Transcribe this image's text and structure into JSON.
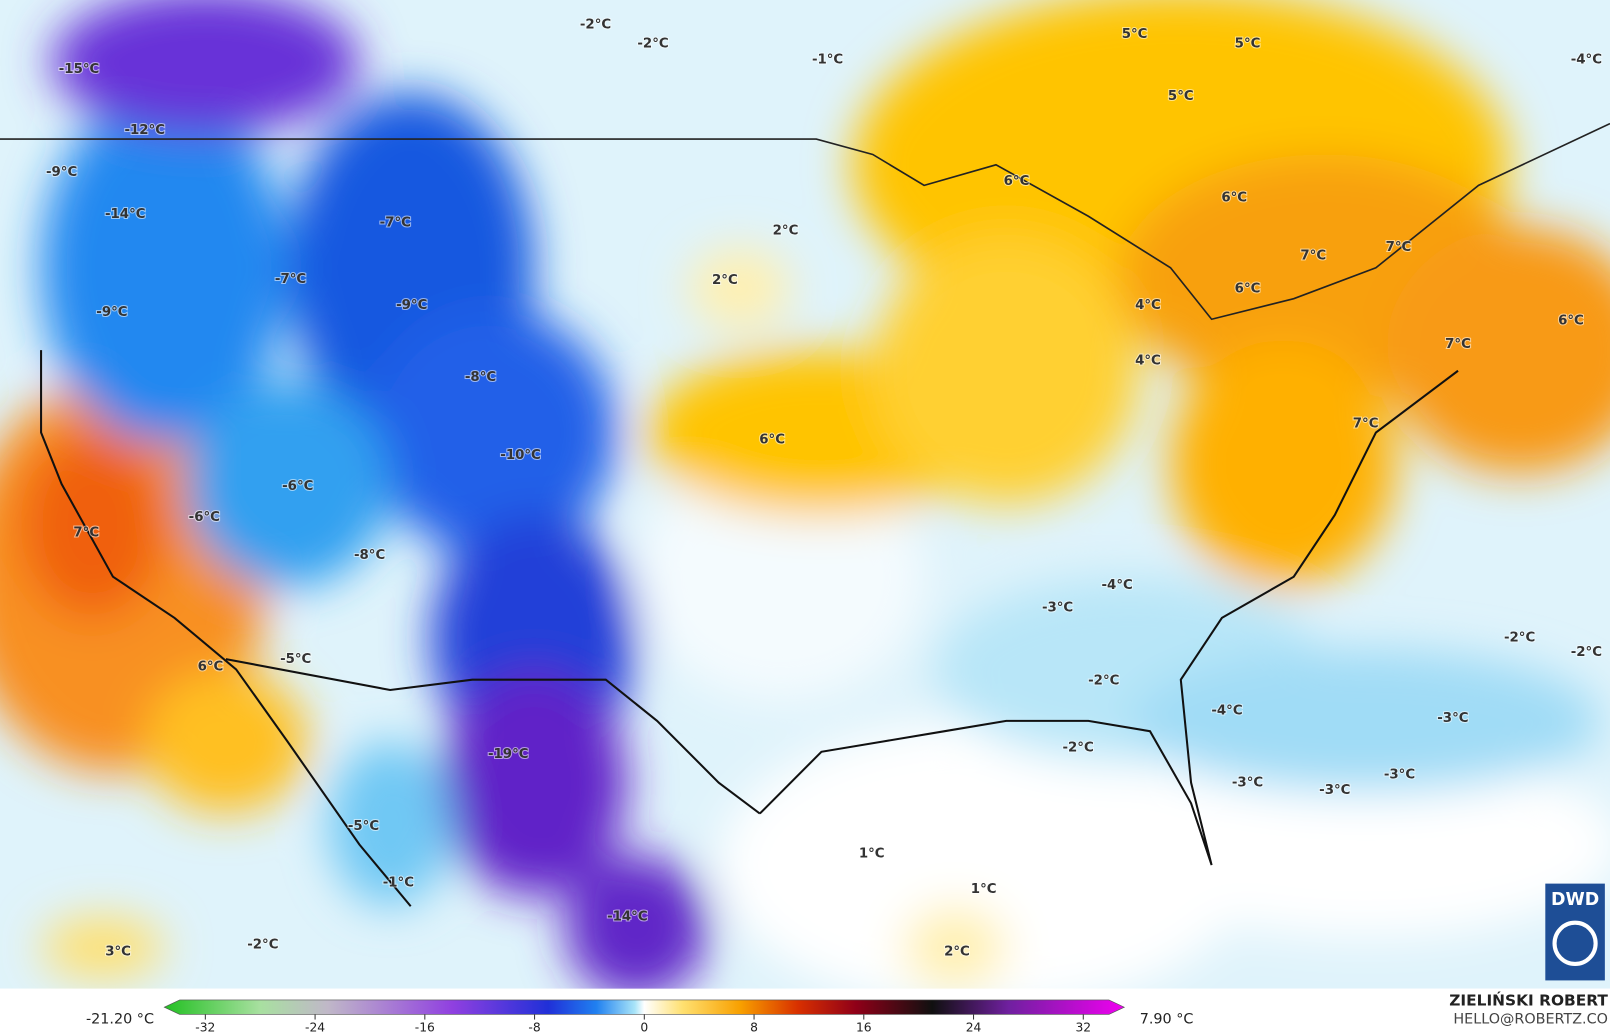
{
  "map": {
    "labels": [
      "-15°C",
      "-12°C",
      "-9°C",
      "-14°C",
      "-7°C",
      "-7°C",
      "-9°C",
      "-9°C",
      "-8°C",
      "-10°C",
      "-6°C",
      "-6°C",
      "7°C",
      "-8°C",
      "6°C",
      "-5°C",
      "-19°C",
      "-5°C",
      "-1°C",
      "-14°C",
      "3°C",
      "-2°C",
      "-2°C",
      "-2°C",
      "-1°C",
      "5°C",
      "5°C",
      "5°C",
      "-4°C",
      "6°C",
      "6°C",
      "2°C",
      "2°C",
      "7°C",
      "7°C",
      "6°C",
      "4°C",
      "4°C",
      "6°C",
      "7°C",
      "7°C",
      "6°C",
      "-4°C",
      "-3°C",
      "-2°C",
      "-2°C",
      "-2°C",
      "-2°C",
      "-4°C",
      "-3°C",
      "-3°C",
      "-3°C",
      "-3°C",
      "1°C",
      "1°C",
      "2°C"
    ]
  },
  "legend": {
    "min_label": "-21.20 °C",
    "max_label": "7.90 °C",
    "ticks": [
      -32,
      -24,
      -16,
      -8,
      0,
      8,
      16,
      24,
      32
    ]
  },
  "credit": {
    "name": "ZIELIŃSKI ROBERT",
    "email": "HELLO@ROBERTZ.CO"
  },
  "logo": "DWD"
}
